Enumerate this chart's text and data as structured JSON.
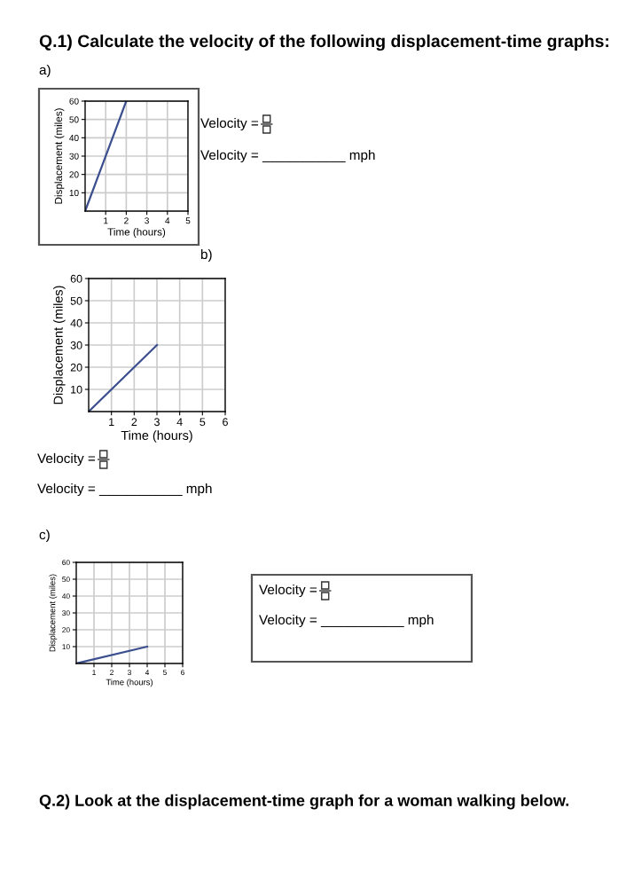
{
  "chart_data": [
    {
      "type": "line",
      "title": "Q.1) Calculate the velocity of the following displacement-time graphs:",
      "subtitle": "a)",
      "xlabel": "Time (hours)",
      "ylabel": "Displacement (miles)",
      "x": [
        0,
        2
      ],
      "values": [
        0,
        60
      ],
      "color": "#3b4f8f",
      "xlim": [
        0,
        5
      ],
      "ylim": [
        0,
        60
      ],
      "xticks": [
        1,
        2,
        3,
        4,
        5
      ],
      "yticks": [
        10,
        20,
        30,
        40,
        50,
        60
      ],
      "grid": true,
      "annotations": [
        "Velocity =",
        "Velocity = ___________ mph"
      ]
    },
    {
      "type": "line",
      "subtitle": "b)",
      "xlabel": "Time (hours)",
      "ylabel": "Displacement (miles)",
      "x": [
        0,
        3
      ],
      "values": [
        0,
        30
      ],
      "color": "#3b4f8f",
      "xlim": [
        0,
        6
      ],
      "ylim": [
        0,
        60
      ],
      "xticks": [
        1,
        2,
        3,
        4,
        5,
        6
      ],
      "yticks": [
        10,
        20,
        30,
        40,
        50,
        60
      ],
      "grid": true,
      "annotations": [
        "Velocity =",
        "Velocity = ___________ mph"
      ]
    },
    {
      "type": "line",
      "subtitle": "c)",
      "xlabel": "Time (hours)",
      "ylabel": "Displacement (miles)",
      "x": [
        0,
        4
      ],
      "values": [
        0,
        10
      ],
      "color": "#3b4f8f",
      "xlim": [
        0,
        6
      ],
      "ylim": [
        0,
        60
      ],
      "xticks": [
        1,
        2,
        3,
        4,
        5,
        6
      ],
      "yticks": [
        10,
        20,
        30,
        40,
        50,
        60
      ],
      "grid": true,
      "annotations": [
        "Velocity =",
        "Velocity = ___________ mph",
        "Q.2) Look at the displacement-time graph for a woman walking below."
      ]
    }
  ]
}
